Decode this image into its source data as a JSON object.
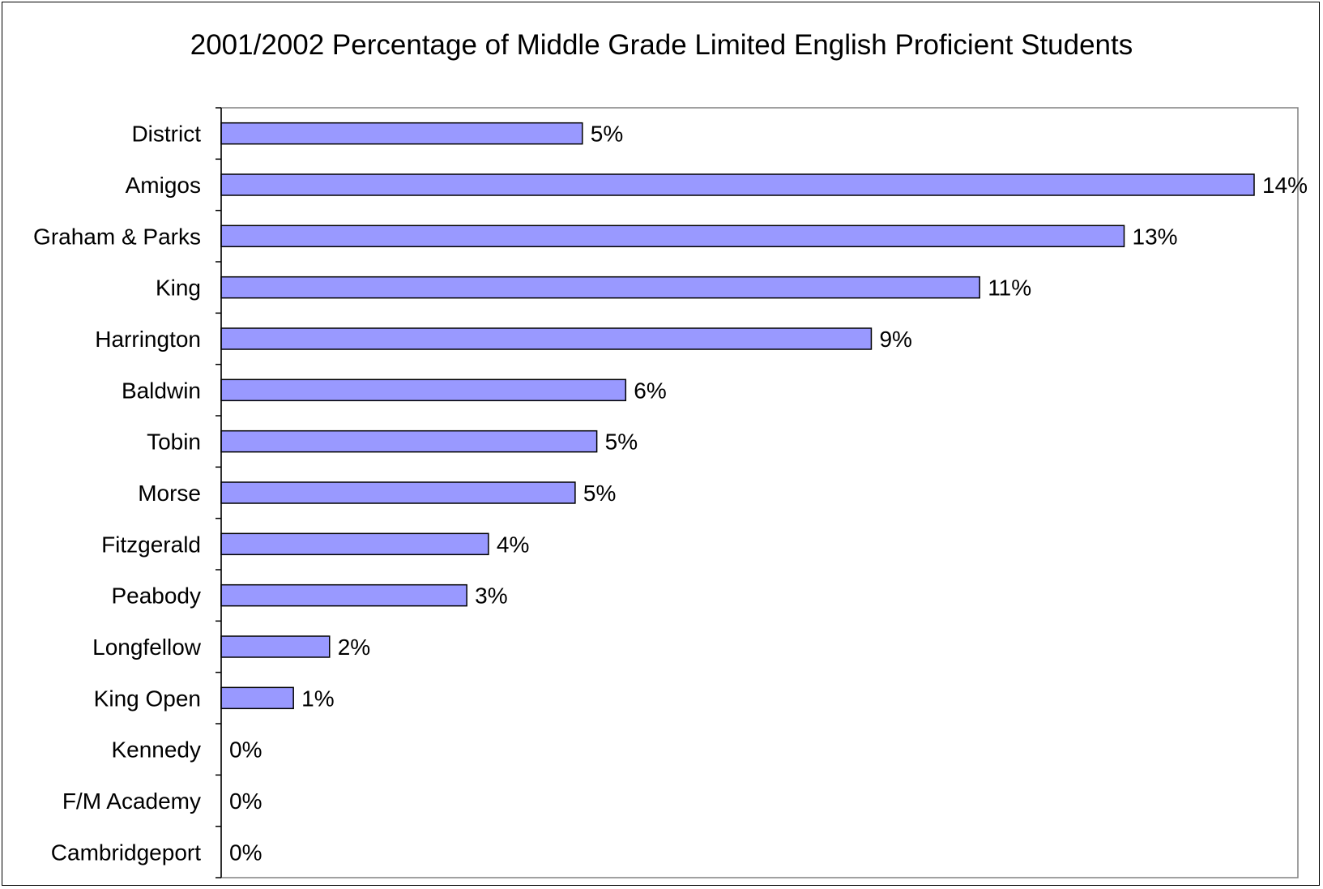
{
  "chart_data": {
    "type": "bar",
    "orientation": "horizontal",
    "title": "2001/2002 Percentage of Middle Grade Limited English Proficient Students",
    "xlabel": "",
    "ylabel": "",
    "categories": [
      "District",
      "Amigos",
      "Graham & Parks",
      "King",
      "Harrington",
      "Baldwin",
      "Tobin",
      "Morse",
      "Fitzgerald",
      "Peabody",
      "Longfellow",
      "King Open",
      "Kennedy",
      "F/M Academy",
      "Cambridgeport"
    ],
    "values": [
      5.0,
      14.3,
      12.5,
      10.5,
      9.0,
      5.6,
      5.2,
      4.9,
      3.7,
      3.4,
      1.5,
      1.0,
      0,
      0,
      0
    ],
    "value_labels": [
      "5%",
      "14%",
      "13%",
      "11%",
      "9%",
      "6%",
      "5%",
      "5%",
      "4%",
      "3%",
      "2%",
      "1%",
      "0%",
      "0%",
      "0%"
    ],
    "xlim": [
      0,
      15
    ],
    "grid": false,
    "legend": "none",
    "bar_color": "#9999ff",
    "bar_edge_color": "#000000",
    "plot_border_color": "#808080"
  }
}
